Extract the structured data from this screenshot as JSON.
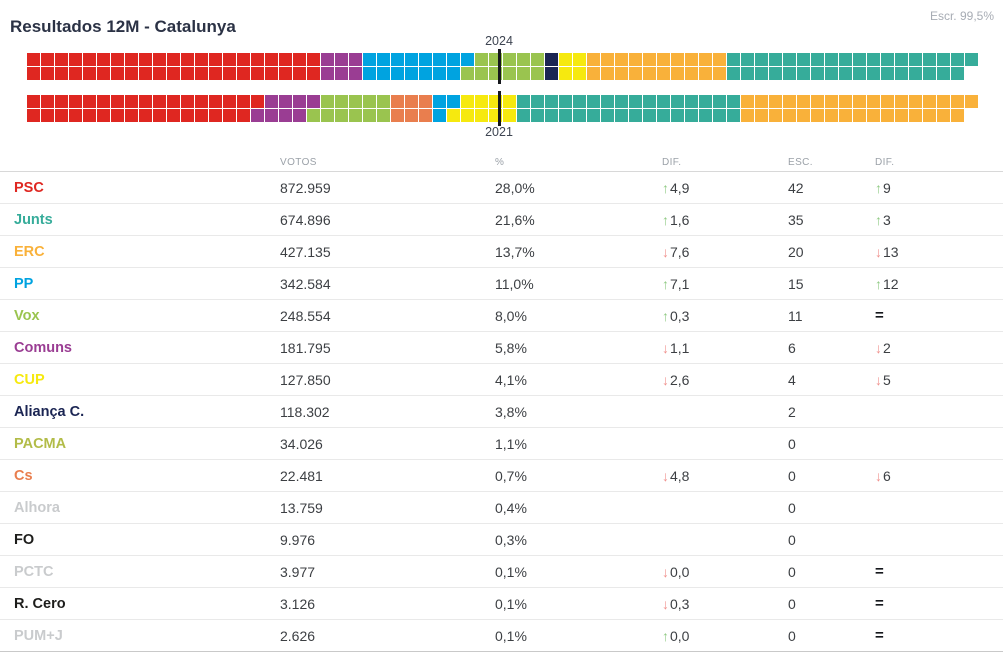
{
  "page": {
    "title": "Resultados 12M - Catalunya",
    "escrutinio": "Escr. 99,5%"
  },
  "party_colors": {
    "PSC": "#df2721",
    "Junts": "#36ac9a",
    "ERC": "#f9b13a",
    "PP": "#00a3e0",
    "Vox": "#9ac44f",
    "Comuns": "#9a3d93",
    "CUP": "#f6e90f",
    "Aliança C.": "#1b2553",
    "PACMA": "#b2bc48",
    "Cs": "#e97e4e",
    "Alhora": "#c9cbcd",
    "FO": "#1d1d1b",
    "PCTC": "#c9cbcd",
    "R. Cero": "#1d1d1b",
    "PUM+J": "#c9cbcd"
  },
  "chart_data": [
    {
      "type": "seat-strip",
      "year": "2024",
      "label_side": "top",
      "total_seats": 135,
      "majority_seats": 68,
      "blocks": [
        {
          "party": "PSC",
          "seats": 42
        },
        {
          "party": "Comuns",
          "seats": 6
        },
        {
          "party": "PP",
          "seats": 15
        },
        {
          "party": "Vox",
          "seats": 11
        },
        {
          "party": "Aliança C.",
          "seats": 2
        },
        {
          "party": "CUP",
          "seats": 4
        },
        {
          "party": "ERC",
          "seats": 20
        },
        {
          "party": "Junts",
          "seats": 35
        }
      ]
    },
    {
      "type": "seat-strip",
      "year": "2021",
      "label_side": "bottom",
      "total_seats": 135,
      "majority_seats": 68,
      "blocks": [
        {
          "party": "PSC",
          "seats": 33
        },
        {
          "party": "Comuns",
          "seats": 8
        },
        {
          "party": "Vox",
          "seats": 11
        },
        {
          "party": "Cs",
          "seats": 6
        },
        {
          "party": "PP",
          "seats": 3
        },
        {
          "party": "CUP",
          "seats": 9
        },
        {
          "party": "Junts",
          "seats": 32
        },
        {
          "party": "ERC",
          "seats": 33
        }
      ]
    },
    {
      "type": "table",
      "columns": [
        "VOTOS",
        "%",
        "DIF.",
        "ESC.",
        "DIF."
      ],
      "rows": [
        {
          "party": "PSC",
          "votes": "872.959",
          "pct": "28,0%",
          "dif_pct": {
            "dir": "up",
            "value": "4,9"
          },
          "esc": "42",
          "dif_esc": {
            "dir": "up",
            "value": "9"
          }
        },
        {
          "party": "Junts",
          "votes": "674.896",
          "pct": "21,6%",
          "dif_pct": {
            "dir": "up",
            "value": "1,6"
          },
          "esc": "35",
          "dif_esc": {
            "dir": "up",
            "value": "3"
          }
        },
        {
          "party": "ERC",
          "votes": "427.135",
          "pct": "13,7%",
          "dif_pct": {
            "dir": "down",
            "value": "7,6"
          },
          "esc": "20",
          "dif_esc": {
            "dir": "down",
            "value": "13"
          }
        },
        {
          "party": "PP",
          "votes": "342.584",
          "pct": "11,0%",
          "dif_pct": {
            "dir": "up",
            "value": "7,1"
          },
          "esc": "15",
          "dif_esc": {
            "dir": "up",
            "value": "12"
          }
        },
        {
          "party": "Vox",
          "votes": "248.554",
          "pct": "8,0%",
          "dif_pct": {
            "dir": "up",
            "value": "0,3"
          },
          "esc": "11",
          "dif_esc": {
            "dir": "equal"
          }
        },
        {
          "party": "Comuns",
          "votes": "181.795",
          "pct": "5,8%",
          "dif_pct": {
            "dir": "down",
            "value": "1,1"
          },
          "esc": "6",
          "dif_esc": {
            "dir": "down",
            "value": "2"
          }
        },
        {
          "party": "CUP",
          "votes": "127.850",
          "pct": "4,1%",
          "dif_pct": {
            "dir": "down",
            "value": "2,6"
          },
          "esc": "4",
          "dif_esc": {
            "dir": "down",
            "value": "5"
          }
        },
        {
          "party": "Aliança C.",
          "votes": "118.302",
          "pct": "3,8%",
          "dif_pct": null,
          "esc": "2",
          "dif_esc": null
        },
        {
          "party": "PACMA",
          "votes": "34.026",
          "pct": "1,1%",
          "dif_pct": null,
          "esc": "0",
          "dif_esc": null
        },
        {
          "party": "Cs",
          "votes": "22.481",
          "pct": "0,7%",
          "dif_pct": {
            "dir": "down",
            "value": "4,8"
          },
          "esc": "0",
          "dif_esc": {
            "dir": "down",
            "value": "6"
          }
        },
        {
          "party": "Alhora",
          "votes": "13.759",
          "pct": "0,4%",
          "dif_pct": null,
          "esc": "0",
          "dif_esc": null
        },
        {
          "party": "FO",
          "votes": "9.976",
          "pct": "0,3%",
          "dif_pct": null,
          "esc": "0",
          "dif_esc": null
        },
        {
          "party": "PCTC",
          "votes": "3.977",
          "pct": "0,1%",
          "dif_pct": {
            "dir": "down",
            "value": "0,0"
          },
          "esc": "0",
          "dif_esc": {
            "dir": "equal"
          }
        },
        {
          "party": "R. Cero",
          "votes": "3.126",
          "pct": "0,1%",
          "dif_pct": {
            "dir": "down",
            "value": "0,3"
          },
          "esc": "0",
          "dif_esc": {
            "dir": "equal"
          }
        },
        {
          "party": "PUM+J",
          "votes": "2.626",
          "pct": "0,1%",
          "dif_pct": {
            "dir": "up",
            "value": "0,0"
          },
          "esc": "0",
          "dif_esc": {
            "dir": "equal"
          }
        }
      ]
    }
  ]
}
